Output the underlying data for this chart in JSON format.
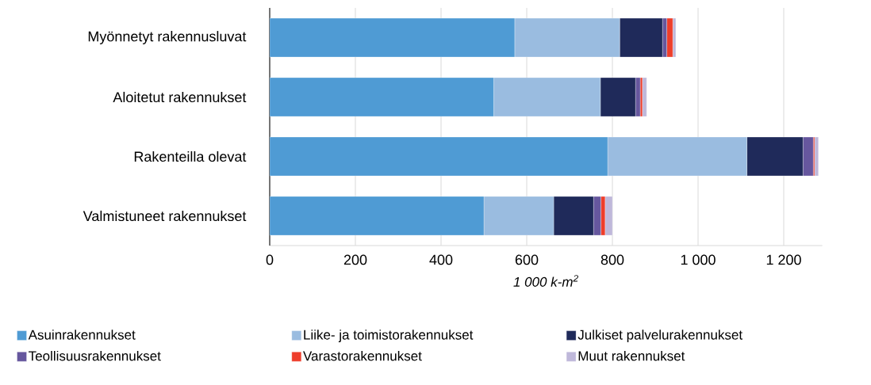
{
  "chart_data": {
    "type": "bar",
    "orientation": "horizontal",
    "stacked": true,
    "categories": [
      "Myönnetyt rakennusluvat",
      "Aloitetut rakennukset",
      "Rakenteilla olevat",
      "Valmistuneet rakennukset"
    ],
    "series": [
      {
        "name": "Asuinrakennukset",
        "color": "#4f9bd4",
        "values": [
          572,
          523,
          789,
          500
        ]
      },
      {
        "name": "Liike- ja toimistorakennukset",
        "color": "#9abce0",
        "values": [
          245,
          249,
          325,
          163
        ]
      },
      {
        "name": "Julkiset palvelurakennukset",
        "color": "#1f2a5a",
        "values": [
          100,
          82,
          131,
          93
        ]
      },
      {
        "name": "Teollisuusrakennukset",
        "color": "#66579e",
        "values": [
          10,
          11,
          24,
          17
        ]
      },
      {
        "name": "Varastorakennukset",
        "color": "#ee3e2b",
        "values": [
          14,
          5,
          3,
          10
        ]
      },
      {
        "name": "Muut rakennukset",
        "color": "#bfb8da",
        "values": [
          7,
          10,
          9,
          17
        ]
      }
    ],
    "xlabel": "1 000 k-m$^{2}$",
    "xticks": [
      0,
      200,
      400,
      600,
      800,
      {
        "value": 1000,
        "label": "1 000"
      },
      {
        "value": 1200,
        "label": "1 200"
      }
    ],
    "xlim": [
      0,
      1290
    ],
    "grid": "x",
    "legend": "bottom"
  }
}
